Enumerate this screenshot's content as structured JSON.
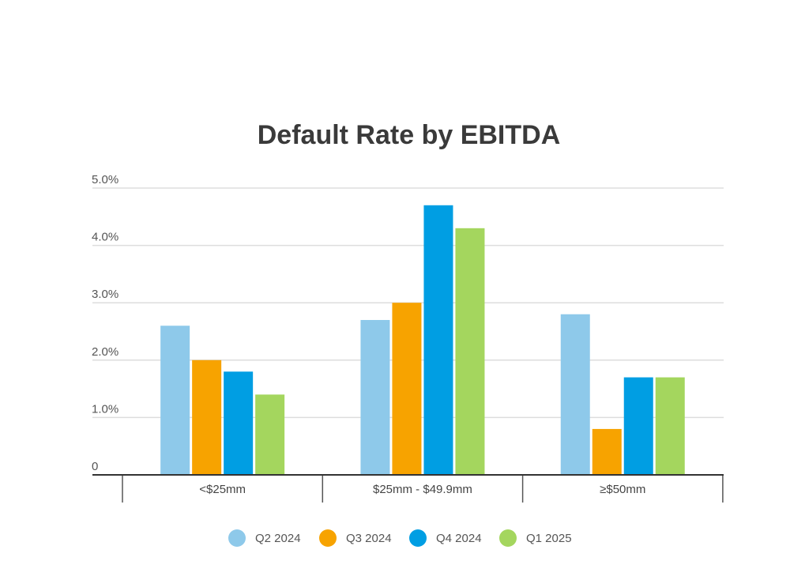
{
  "chart_data": {
    "type": "bar",
    "title": "Default Rate by EBITDA",
    "categories": [
      "<$25mm",
      "$25mm - $49.9mm",
      "≥$50mm"
    ],
    "series": [
      {
        "name": "Q2 2024",
        "color": "#8ec9ea",
        "values": [
          2.6,
          2.7,
          2.8
        ]
      },
      {
        "name": "Q3 2024",
        "color": "#f7a300",
        "values": [
          2.0,
          3.0,
          0.8
        ]
      },
      {
        "name": "Q4 2024",
        "color": "#009ee3",
        "values": [
          1.8,
          4.7,
          1.7
        ]
      },
      {
        "name": "Q1 2025",
        "color": "#a4d65e",
        "values": [
          1.4,
          4.3,
          1.7
        ]
      }
    ],
    "ylim": [
      0,
      5
    ],
    "yticks": [
      0,
      1,
      2,
      3,
      4,
      5
    ],
    "ytick_labels": [
      "0",
      "1.0%",
      "2.0%",
      "3.0%",
      "4.0%",
      "5.0%"
    ],
    "grid": true,
    "legend_position": "bottom"
  }
}
